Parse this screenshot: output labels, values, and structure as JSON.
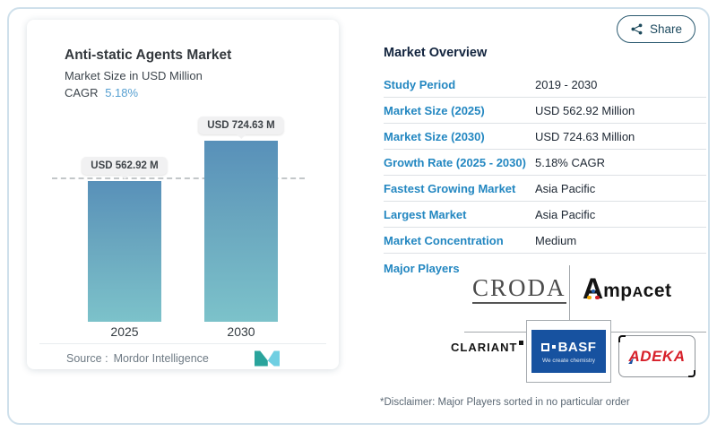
{
  "share": {
    "label": "Share"
  },
  "chart_card": {
    "title": "Anti-static Agents Market",
    "subtitle": "Market Size in USD Million",
    "cagr_label": "CAGR",
    "cagr_value": "5.18%",
    "source_label": "Source :",
    "source_value": "Mordor Intelligence"
  },
  "chart_data": {
    "type": "bar",
    "title": "Anti-static Agents Market",
    "subtitle": "Market Size in USD Million",
    "categories": [
      "2025",
      "2030"
    ],
    "values": [
      562.92,
      724.63
    ],
    "unit": "USD Million",
    "bar_labels": [
      "USD 562.92 M",
      "USD 724.63 M"
    ],
    "cagr_percent": 5.18,
    "ylim": [
      0,
      724.63
    ],
    "grid": "off",
    "legend": "none",
    "reference_line_value": 562.92,
    "bar_gradient": [
      "#5890b9",
      "#7cc2ca"
    ]
  },
  "overview": {
    "title": "Market Overview",
    "rows": [
      {
        "label": "Study Period",
        "value": "2019 - 2030"
      },
      {
        "label": "Market Size (2025)",
        "value": "USD 562.92 Million"
      },
      {
        "label": "Market Size (2030)",
        "value": "USD 724.63 Million"
      },
      {
        "label": "Growth Rate (2025 - 2030)",
        "value": "5.18% CAGR"
      },
      {
        "label": "Fastest Growing Market",
        "value": "Asia Pacific"
      },
      {
        "label": "Largest Market",
        "value": "Asia Pacific"
      },
      {
        "label": "Market Concentration",
        "value": "Medium"
      }
    ],
    "major_players_label": "Major Players",
    "players": [
      "Croda",
      "Ampacet",
      "Clariant",
      "BASF",
      "ADEKA"
    ],
    "disclaimer": "*Disclaimer: Major Players sorted in no particular order"
  },
  "logos": {
    "croda": "CRODA",
    "ampacet": {
      "first": "A",
      "mid1": "mp",
      "mid2": "A",
      "rest": "cet"
    },
    "clariant": "CLARIANT",
    "basf": {
      "name": "BASF",
      "tagline": "We create chemistry"
    },
    "adeka": {
      "first": "A",
      "rest": "DEKA"
    }
  },
  "colors": {
    "accent_blue": "#2387c1",
    "cagr_blue": "#57a0d1",
    "heading_navy": "#12243e",
    "frame_border": "#cfe0eb",
    "basf_blue": "#1752a0",
    "adeka_red": "#d7202a",
    "mordor_teal": "#2aa49c",
    "mordor_light_blue": "#6fcfe2"
  }
}
